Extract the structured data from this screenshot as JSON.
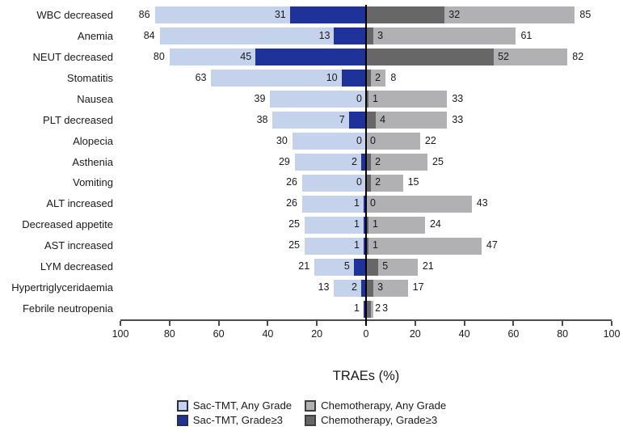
{
  "chart_data": {
    "type": "bar",
    "subtype": "diverging_stacked_tornado",
    "title": "",
    "xlabel": "TRAEs (%)",
    "grid": false,
    "legend_position": "bottom",
    "axis": {
      "tick_labels": [
        "100",
        "80",
        "60",
        "40",
        "20",
        "0",
        "20",
        "40",
        "60",
        "80",
        "100"
      ],
      "left_max": 100,
      "right_max": 100,
      "axis_color": "#4c4c4c",
      "zero_line_color": "#000000"
    },
    "colors": {
      "sac_any": "#c5d2ec",
      "sac_g3": "#1f3299",
      "chemo_any": "#b1b1b3",
      "chemo_g3": "#676767"
    },
    "legend": [
      {
        "name": "Sac-TMT, Any Grade",
        "color": "#c5d2ec",
        "border": "#26304d"
      },
      {
        "name": "Chemotherapy, Any Grade",
        "color": "#b1b1b3",
        "border": "#3d3d3d"
      },
      {
        "name": "Sac-TMT, Grade≥3",
        "color": "#1f3299",
        "border": "#26304d"
      },
      {
        "name": "Chemotherapy, Grade≥3",
        "color": "#676767",
        "border": "#3d3d3d"
      }
    ],
    "series_note": "left side = Sac-TMT (any grade light blue, grade>=3 dark blue); right side = Chemotherapy (any grade light gray, grade>=3 dark gray); values are percentages",
    "rows": [
      {
        "category": "WBC decreased",
        "sac_any": 86,
        "sac_g3": 31,
        "chemo_g3": 32,
        "chemo_any": 85
      },
      {
        "category": "Anemia",
        "sac_any": 84,
        "sac_g3": 13,
        "chemo_g3": 3,
        "chemo_any": 61
      },
      {
        "category": "NEUT decreased",
        "sac_any": 80,
        "sac_g3": 45,
        "chemo_g3": 52,
        "chemo_any": 82
      },
      {
        "category": "Stomatitis",
        "sac_any": 63,
        "sac_g3": 10,
        "chemo_g3": 2,
        "chemo_any": 8
      },
      {
        "category": "Nausea",
        "sac_any": 39,
        "sac_g3": 0,
        "chemo_g3": 1,
        "chemo_any": 33
      },
      {
        "category": "PLT decreased",
        "sac_any": 38,
        "sac_g3": 7,
        "chemo_g3": 4,
        "chemo_any": 33
      },
      {
        "category": "Alopecia",
        "sac_any": 30,
        "sac_g3": 0,
        "chemo_g3": 0,
        "chemo_any": 22
      },
      {
        "category": "Asthenia",
        "sac_any": 29,
        "sac_g3": 2,
        "chemo_g3": 2,
        "chemo_any": 25
      },
      {
        "category": "Vomiting",
        "sac_any": 26,
        "sac_g3": 0,
        "chemo_g3": 2,
        "chemo_any": 15
      },
      {
        "category": "ALT increased",
        "sac_any": 26,
        "sac_g3": 1,
        "chemo_g3": 0,
        "chemo_any": 43
      },
      {
        "category": "Decreased appetite",
        "sac_any": 25,
        "sac_g3": 1,
        "chemo_g3": 1,
        "chemo_any": 24
      },
      {
        "category": "AST increased",
        "sac_any": 25,
        "sac_g3": 1,
        "chemo_g3": 1,
        "chemo_any": 47
      },
      {
        "category": "LYM decreased",
        "sac_any": 21,
        "sac_g3": 5,
        "chemo_g3": 5,
        "chemo_any": 21
      },
      {
        "category": "Hypertriglyceridaemia",
        "sac_any": 13,
        "sac_g3": 2,
        "chemo_g3": 3,
        "chemo_any": 17
      },
      {
        "category": "Febrile neutropenia",
        "sac_any": 1,
        "sac_g3": 1,
        "chemo_g3": 2,
        "chemo_any": 3,
        "labels": {
          "sac_any": "",
          "sac_g3": "1",
          "chemo_g3": "2",
          "chemo_any": "3"
        }
      }
    ]
  }
}
